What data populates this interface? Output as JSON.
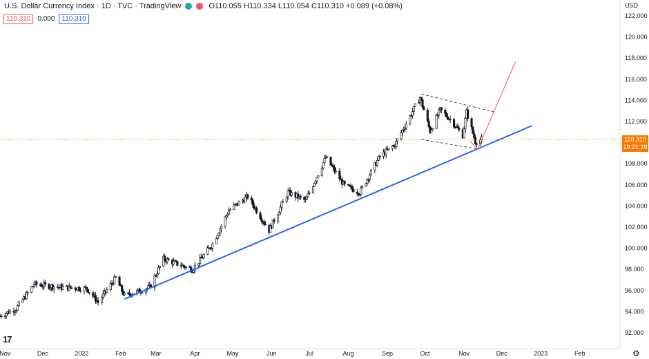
{
  "header": {
    "title": "U.S. Dollar Currency Index · 1D · TVC · TradingView",
    "ohlc": {
      "o_label": "O",
      "o": "110.055",
      "h_label": "H",
      "h": "110.334",
      "l_label": "L",
      "l": "110.054",
      "c_label": "C",
      "c": "110.310",
      "change": "+0.089 (+0.08%)"
    },
    "badge_red": "110.310",
    "badge_mid": "0.000",
    "badge_blue": "110.310",
    "logo": "17"
  },
  "colors": {
    "up": "#26a69a",
    "down": "#ef5350",
    "candle": "#131722",
    "trend_line": "#2962ff",
    "projection": "#ef5350",
    "price_line": "#f57c00",
    "channel": "#131722"
  },
  "price_axis": {
    "currency": "USD",
    "last_price": "110.310",
    "countdown": "19:21:39",
    "gear_icon": "⚙"
  },
  "chart_data": {
    "type": "candlestick",
    "ylim": [
      90.5,
      123.5
    ],
    "yticks": [
      "122.000",
      "120.000",
      "118.000",
      "116.000",
      "114.000",
      "112.000",
      "110.000",
      "108.000",
      "106.000",
      "104.000",
      "102.000",
      "100.000",
      "98.000",
      "96.000",
      "94.000",
      "92.000"
    ],
    "ytick_values": [
      122,
      120,
      118,
      116,
      114,
      112,
      110,
      108,
      106,
      104,
      102,
      100,
      98,
      96,
      94,
      92
    ],
    "xlim": [
      "2021-10-28",
      "2023-03-05"
    ],
    "xticks": [
      "Nov",
      "Dec",
      "2022",
      "Feb",
      "Mar",
      "Apr",
      "May",
      "Jun",
      "Jul",
      "Aug",
      "Sep",
      "Oct",
      "Nov",
      "Dec",
      "2023",
      "Feb"
    ],
    "xtick_dates": [
      "2021-11-01",
      "2021-12-01",
      "2022-01-01",
      "2022-02-01",
      "2022-03-01",
      "2022-04-01",
      "2022-05-01",
      "2022-06-01",
      "2022-07-01",
      "2022-08-01",
      "2022-09-01",
      "2022-10-01",
      "2022-11-01",
      "2022-12-01",
      "2023-01-01",
      "2023-02-01"
    ],
    "price_anchors": [
      [
        "2021-10-28",
        93.6
      ],
      [
        "2021-11-10",
        94.3
      ],
      [
        "2021-11-24",
        96.6
      ],
      [
        "2021-12-15",
        96.3
      ],
      [
        "2022-01-05",
        96.2
      ],
      [
        "2022-01-14",
        94.9
      ],
      [
        "2022-01-28",
        97.2
      ],
      [
        "2022-02-04",
        95.5
      ],
      [
        "2022-02-24",
        96.3
      ],
      [
        "2022-03-07",
        99.0
      ],
      [
        "2022-03-30",
        98.0
      ],
      [
        "2022-04-15",
        100.4
      ],
      [
        "2022-04-28",
        103.6
      ],
      [
        "2022-05-13",
        104.9
      ],
      [
        "2022-05-30",
        101.7
      ],
      [
        "2022-06-14",
        105.3
      ],
      [
        "2022-06-28",
        104.5
      ],
      [
        "2022-07-14",
        108.6
      ],
      [
        "2022-07-29",
        105.9
      ],
      [
        "2022-08-10",
        105.3
      ],
      [
        "2022-08-26",
        108.7
      ],
      [
        "2022-09-07",
        109.8
      ],
      [
        "2022-09-27",
        114.3
      ],
      [
        "2022-10-05",
        111.1
      ],
      [
        "2022-10-13",
        113.1
      ],
      [
        "2022-10-21",
        112.2
      ],
      [
        "2022-10-31",
        110.7
      ],
      [
        "2022-11-03",
        112.9
      ],
      [
        "2022-11-10",
        110.1
      ],
      [
        "2022-11-15",
        110.31
      ]
    ],
    "trend_line": {
      "from": [
        "2022-02-04",
        95.2
      ],
      "to": [
        "2022-12-25",
        111.6
      ]
    },
    "channel_upper": {
      "from": [
        "2022-09-28",
        114.6
      ],
      "to": [
        "2022-11-25",
        112.9
      ]
    },
    "channel_lower": {
      "from": [
        "2022-09-28",
        110.3
      ],
      "to": [
        "2022-11-12",
        109.4
      ]
    },
    "projection": [
      [
        "2022-11-06",
        110.1
      ],
      [
        "2022-11-12",
        109.4
      ],
      [
        "2022-12-12",
        117.7
      ]
    ],
    "last_price": 110.31
  }
}
